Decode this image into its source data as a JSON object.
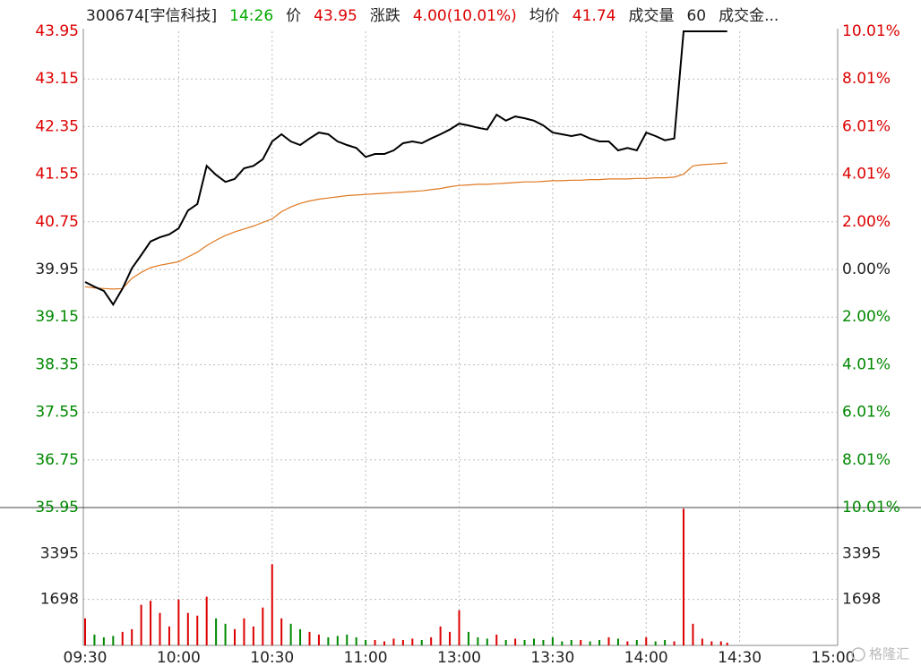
{
  "chart_data": [
    {
      "type": "line",
      "header": [
        {
          "text": "300674[宇信科技]",
          "color": "#222"
        },
        {
          "text": "14:26",
          "color": "#0a0"
        },
        {
          "text": "价",
          "color": "#222"
        },
        {
          "text": "43.95",
          "color": "#d00"
        },
        {
          "text": "涨跌",
          "color": "#222"
        },
        {
          "text": "4.00(10.01%)",
          "color": "#d00"
        },
        {
          "text": "均价",
          "color": "#222"
        },
        {
          "text": "41.74",
          "color": "#d00"
        },
        {
          "text": "成交量",
          "color": "#222"
        },
        {
          "text": "60",
          "color": "#222"
        },
        {
          "text": "成交金...",
          "color": "#222"
        }
      ],
      "up_color": "#d00",
      "down_color": "#080",
      "flat_color": "#222",
      "x": [
        0,
        3,
        6,
        9,
        12,
        15,
        18,
        21,
        24,
        27,
        30,
        33,
        36,
        39,
        42,
        45,
        48,
        51,
        54,
        57,
        60,
        63,
        66,
        69,
        72,
        75,
        78,
        81,
        84,
        87,
        90,
        93,
        96,
        99,
        102,
        105,
        108,
        111,
        114,
        117,
        120,
        123,
        126,
        129,
        132,
        135,
        138,
        141,
        144,
        147,
        150,
        153,
        156,
        159,
        162,
        165,
        168,
        171,
        174,
        177,
        180,
        183,
        186,
        189,
        192,
        195,
        198,
        201,
        204,
        206
      ],
      "series": [
        {
          "name": "价",
          "color": "#000",
          "values": [
            39.74,
            39.66,
            39.59,
            39.36,
            39.63,
            39.97,
            40.19,
            40.42,
            40.49,
            40.54,
            40.64,
            40.94,
            41.05,
            41.69,
            41.54,
            41.42,
            41.47,
            41.65,
            41.69,
            41.8,
            42.1,
            42.22,
            42.1,
            42.04,
            42.15,
            42.25,
            42.22,
            42.1,
            42.04,
            41.99,
            41.84,
            41.89,
            41.89,
            41.95,
            42.07,
            42.1,
            42.07,
            42.15,
            42.22,
            42.3,
            42.4,
            42.37,
            42.33,
            42.3,
            42.55,
            42.45,
            42.52,
            42.49,
            42.45,
            42.37,
            42.25,
            42.22,
            42.19,
            42.22,
            42.15,
            42.1,
            42.1,
            41.95,
            41.99,
            41.95,
            42.25,
            42.19,
            42.12,
            42.15,
            43.95,
            43.95,
            43.95,
            43.95,
            43.95,
            43.95
          ]
        },
        {
          "name": "均价",
          "color": "#e07820",
          "values": [
            39.66,
            39.64,
            39.63,
            39.62,
            39.63,
            39.8,
            39.9,
            39.98,
            40.02,
            40.05,
            40.08,
            40.16,
            40.24,
            40.35,
            40.44,
            40.52,
            40.58,
            40.63,
            40.68,
            40.74,
            40.8,
            40.92,
            41.0,
            41.06,
            41.1,
            41.13,
            41.15,
            41.17,
            41.19,
            41.2,
            41.21,
            41.22,
            41.23,
            41.24,
            41.25,
            41.26,
            41.27,
            41.29,
            41.31,
            41.34,
            41.36,
            41.37,
            41.38,
            41.38,
            41.39,
            41.4,
            41.41,
            41.42,
            41.42,
            41.43,
            41.44,
            41.44,
            41.45,
            41.45,
            41.46,
            41.46,
            41.47,
            41.47,
            41.47,
            41.48,
            41.48,
            41.49,
            41.49,
            41.5,
            41.55,
            41.69,
            41.71,
            41.72,
            41.73,
            41.74
          ]
        }
      ],
      "xlim": [
        0,
        240
      ],
      "xticks": [
        {
          "value": 0,
          "label": "09:30"
        },
        {
          "value": 30,
          "label": "10:00"
        },
        {
          "value": 60,
          "label": "10:30"
        },
        {
          "value": 90,
          "label": "11:00"
        },
        {
          "value": 120,
          "label": "13:00"
        },
        {
          "value": 150,
          "label": "13:30"
        },
        {
          "value": 180,
          "label": "14:00"
        },
        {
          "value": 210,
          "label": "14:30"
        },
        {
          "value": 240,
          "label": "15:00"
        }
      ],
      "ylim": [
        35.95,
        43.95
      ],
      "yticks": [
        43.95,
        43.15,
        42.35,
        41.55,
        40.75,
        39.95,
        39.15,
        38.35,
        37.55,
        36.75,
        35.95
      ],
      "y2lim": [
        -10.01,
        10.01
      ],
      "y2ticks": [
        {
          "value": 10.01,
          "label": "10.01%"
        },
        {
          "value": 8.01,
          "label": "8.01%"
        },
        {
          "value": 6.01,
          "label": "6.01%"
        },
        {
          "value": 4.01,
          "label": "4.01%"
        },
        {
          "value": 2.0,
          "label": "2.00%"
        },
        {
          "value": 0.0,
          "label": "0.00%"
        },
        {
          "value": -2.0,
          "label": "2.00%"
        },
        {
          "value": -4.01,
          "label": "4.01%"
        },
        {
          "value": -6.01,
          "label": "6.01%"
        },
        {
          "value": -8.01,
          "label": "8.01%"
        },
        {
          "value": -10.01,
          "label": "10.01%"
        }
      ],
      "grid": true,
      "watermark": "格隆汇"
    },
    {
      "type": "bar",
      "up_color": "#d00",
      "down_color": "#080",
      "x": [
        0,
        3,
        6,
        9,
        12,
        15,
        18,
        21,
        24,
        27,
        30,
        33,
        36,
        39,
        42,
        45,
        48,
        51,
        54,
        57,
        60,
        63,
        66,
        69,
        72,
        75,
        78,
        81,
        84,
        87,
        90,
        93,
        96,
        99,
        102,
        105,
        108,
        111,
        114,
        117,
        120,
        123,
        126,
        129,
        132,
        135,
        138,
        141,
        144,
        147,
        150,
        153,
        156,
        159,
        162,
        165,
        168,
        171,
        174,
        177,
        180,
        183,
        186,
        189,
        192,
        195,
        198,
        201,
        204,
        206
      ],
      "values": [
        1000,
        400,
        300,
        350,
        500,
        600,
        1500,
        1650,
        1200,
        700,
        1700,
        1200,
        1100,
        1800,
        1000,
        800,
        600,
        1000,
        700,
        1400,
        3000,
        1000,
        800,
        600,
        500,
        400,
        300,
        350,
        400,
        300,
        200,
        200,
        150,
        250,
        200,
        250,
        200,
        300,
        700,
        500,
        1300,
        500,
        300,
        250,
        400,
        200,
        250,
        200,
        250,
        200,
        300,
        150,
        200,
        200,
        150,
        200,
        300,
        250,
        150,
        200,
        300,
        150,
        200,
        150,
        5050,
        800,
        250,
        150,
        150,
        100
      ],
      "xlim": [
        0,
        240
      ],
      "ylim": [
        0,
        5093
      ],
      "yticks": [
        1698,
        3395
      ]
    }
  ]
}
